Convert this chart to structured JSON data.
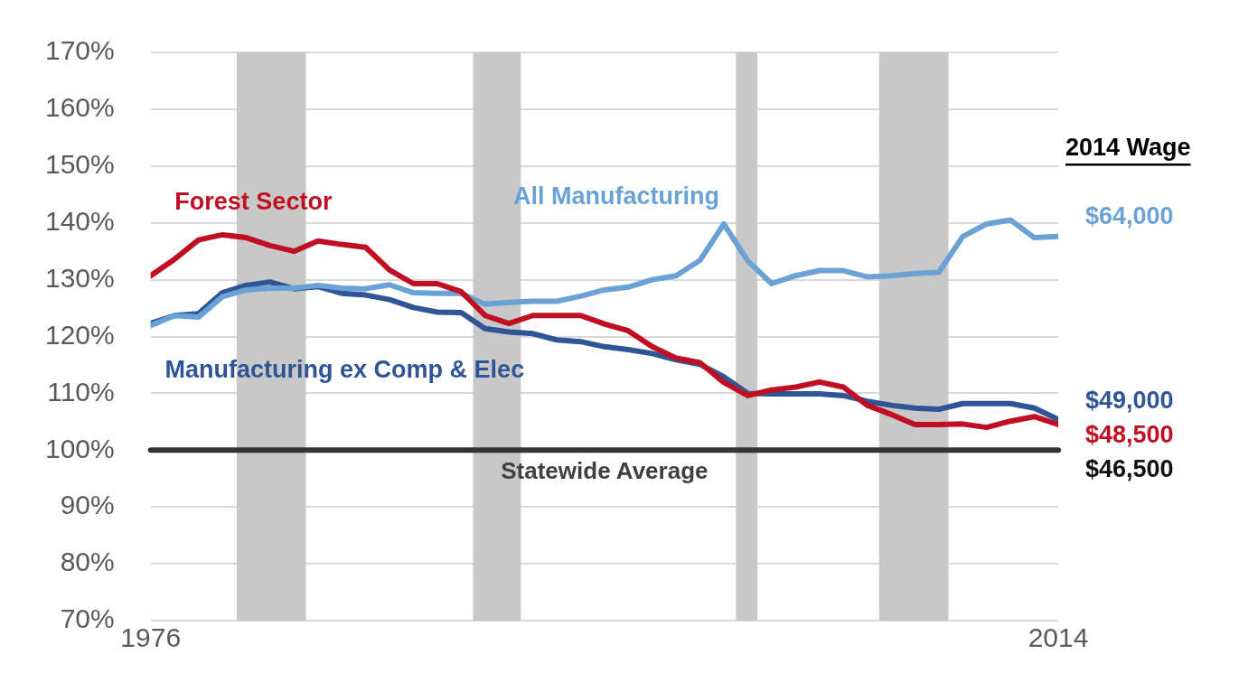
{
  "chart_data": {
    "type": "line",
    "x": [
      1976,
      1977,
      1978,
      1979,
      1980,
      1981,
      1982,
      1983,
      1984,
      1985,
      1986,
      1987,
      1988,
      1989,
      1990,
      1991,
      1992,
      1993,
      1994,
      1995,
      1996,
      1997,
      1998,
      1999,
      2000,
      2001,
      2002,
      2003,
      2004,
      2005,
      2006,
      2007,
      2008,
      2009,
      2010,
      2011,
      2012,
      2013,
      2014
    ],
    "series": [
      {
        "name": "Forest Sector",
        "color": "#c00f23",
        "values": [
          130.7,
          133.6,
          137,
          137.9,
          137.4,
          136,
          135,
          136.8,
          136.2,
          135.7,
          131.7,
          129.3,
          129.3,
          127.9,
          123.7,
          122.3,
          123.7,
          123.7,
          123.7,
          122.2,
          121,
          118.2,
          116.2,
          115.4,
          111.9,
          109.6,
          110.6,
          111.1,
          112,
          111.1,
          107.9,
          106.3,
          104.5,
          104.5,
          104.6,
          104,
          105.1,
          105.9,
          104.5
        ]
      },
      {
        "name": "All Manufacturing",
        "color": "#6aa2d6",
        "values": [
          121.9,
          123.7,
          123.4,
          127,
          128.2,
          128.5,
          128.5,
          129,
          128.5,
          128.4,
          129.1,
          127.7,
          127.6,
          127.6,
          125.7,
          126,
          126.2,
          126.2,
          127.1,
          128.2,
          128.7,
          130,
          130.7,
          133.4,
          139.8,
          133.3,
          129.3,
          130.7,
          131.6,
          131.6,
          130.5,
          130.7,
          131.1,
          131.3,
          137.6,
          139.8,
          140.5,
          137.4,
          137.6
        ]
      },
      {
        "name": "Manufacturing ex Comp & Elec",
        "color": "#2f5597",
        "values": [
          122.3,
          123.7,
          124,
          127.7,
          129,
          129.6,
          128.4,
          128.8,
          127.6,
          127.3,
          126.5,
          125.1,
          124.3,
          124.2,
          121.4,
          120.8,
          120.5,
          119.4,
          119.1,
          118.2,
          117.7,
          117,
          115.9,
          115.1,
          112.9,
          110,
          109.9,
          109.9,
          109.9,
          109.6,
          108.6,
          107.9,
          107.4,
          107.2,
          108.2,
          108.2,
          108.2,
          107.4,
          105.4
        ]
      }
    ],
    "xlim": [
      1976,
      2014
    ],
    "xticks": [
      1976,
      2014
    ],
    "ylim": [
      70,
      170
    ],
    "yticks": [
      {
        "value": 70,
        "label": "70%"
      },
      {
        "value": 80,
        "label": "80%"
      },
      {
        "value": 90,
        "label": "90%"
      },
      {
        "value": 100,
        "label": "100%"
      },
      {
        "value": 110,
        "label": "110%"
      },
      {
        "value": 120,
        "label": "120%"
      },
      {
        "value": 130,
        "label": "130%"
      },
      {
        "value": 140,
        "label": "140%"
      },
      {
        "value": 150,
        "label": "150%"
      },
      {
        "value": 160,
        "label": "160%"
      },
      {
        "value": 170,
        "label": "170%"
      }
    ],
    "grid": "y",
    "legend": false,
    "marker": "none",
    "line_style": "solid",
    "ref_lines": [
      {
        "axis": "y",
        "value": 100,
        "label": "Statewide Average",
        "color": "#333333"
      }
    ],
    "bands": [
      {
        "axis": "x",
        "from": 1979.6,
        "to": 1982.5,
        "color": "#c8c8c8"
      },
      {
        "axis": "x",
        "from": 1989.5,
        "to": 1991.5,
        "color": "#c8c8c8"
      },
      {
        "axis": "x",
        "from": 2000.5,
        "to": 2001.4,
        "color": "#c8c8c8"
      },
      {
        "axis": "x",
        "from": 2006.5,
        "to": 2009.4,
        "color": "#c8c8c8"
      }
    ],
    "annotations": [
      "2014 Wage",
      "$64,000",
      "$49,000",
      "$48,500",
      "$46,500"
    ]
  }
}
